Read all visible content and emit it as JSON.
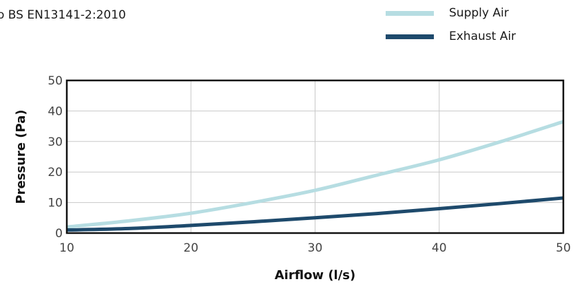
{
  "header": {
    "caption": "o BS EN13141-2:2010"
  },
  "colors": {
    "supply": "#b6dde2",
    "exhaust": "#1e4a6c",
    "grid": "#c8c8c8",
    "frame": "#111111"
  },
  "chart_data": {
    "type": "line",
    "xlabel": "Airflow (l/s)",
    "ylabel": "Pressure (Pa)",
    "xlim": [
      10,
      50
    ],
    "ylim": [
      0,
      50
    ],
    "x_ticks": [
      "10",
      "20",
      "30",
      "40",
      "50"
    ],
    "y_ticks": [
      "0",
      "10",
      "20",
      "30",
      "40",
      "50"
    ],
    "grid": true,
    "legend_position": "top-right",
    "series": [
      {
        "name": "Supply Air",
        "x": [
          10,
          15,
          20,
          25,
          30,
          35,
          40,
          45,
          50
        ],
        "y": [
          2,
          4,
          6.5,
          10,
          14,
          19,
          24,
          30,
          36.5
        ]
      },
      {
        "name": "Exhaust Air",
        "x": [
          10,
          15,
          20,
          25,
          30,
          35,
          40,
          45,
          50
        ],
        "y": [
          1,
          1.5,
          2.5,
          3.7,
          5,
          6.4,
          8,
          9.7,
          11.5
        ]
      }
    ]
  }
}
